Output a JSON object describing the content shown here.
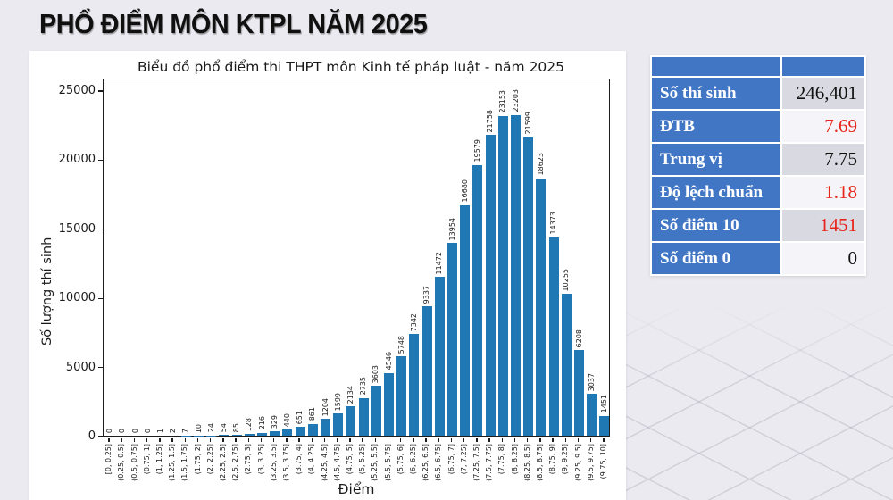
{
  "page_title": "PHỔ ĐIỂM MÔN KTPL NĂM 2025",
  "colors": {
    "bar": "#1f77b4",
    "table_blue": "#4176c5",
    "red": "#e8251a",
    "black": "#111111",
    "value_bg_odd": "#d9d9e1",
    "value_bg_even": "#f5f4f8",
    "background": "#ebeaf0"
  },
  "chart_data": {
    "type": "bar",
    "title": "Biểu đồ phổ điểm thi THPT môn Kinh tế pháp luật - năm 2025",
    "xlabel": "Điểm",
    "ylabel": "Số lượng thí sinh",
    "ylim": [
      0,
      25000
    ],
    "yticks": [
      0,
      5000,
      10000,
      15000,
      20000,
      25000
    ],
    "grid": false,
    "legend_position": "none",
    "bar_color": "#1f77b4",
    "categories": [
      "[0, 0.25]",
      "(0.25, 0.5]",
      "(0.5, 0.75]",
      "(0.75, 1]",
      "(1, 1.25]",
      "(1.25, 1.5]",
      "(1.5, 1.75]",
      "(1.75, 2]",
      "(2, 2.25]",
      "(2.25, 2.5]",
      "(2.5, 2.75]",
      "(2.75, 3]",
      "(3, 3.25]",
      "(3.25, 3.5]",
      "(3.5, 3.75]",
      "(3.75, 4]",
      "(4, 4.25]",
      "(4.25, 4.5]",
      "(4.5, 4.75]",
      "(4.75, 5]",
      "(5, 5.25]",
      "(5.25, 5.5]",
      "(5.5, 5.75]",
      "(5.75, 6]",
      "(6, 6.25]",
      "(6.25, 6.5]",
      "(6.5, 6.75]",
      "(6.75, 7]",
      "(7, 7.25]",
      "(7.25, 7.5]",
      "(7.5, 7.75]",
      "(7.75, 8]",
      "(8, 8.25]",
      "(8.25, 8.5]",
      "(8.5, 8.75]",
      "(8.75, 9]",
      "(9, 9.25]",
      "(9.25, 9.5]",
      "(9.5, 9.75]",
      "(9.75, 10]"
    ],
    "values": [
      0,
      0,
      0,
      0,
      1,
      2,
      7,
      10,
      24,
      54,
      85,
      128,
      216,
      329,
      440,
      651,
      861,
      1204,
      1599,
      2134,
      2735,
      3603,
      4546,
      5748,
      7342,
      9337,
      11472,
      13954,
      16680,
      19579,
      21758,
      23153,
      23203,
      21599,
      18623,
      14373,
      10255,
      6208,
      3037,
      1451
    ]
  },
  "stats_table": {
    "rows": [
      {
        "label": "Số thí sinh",
        "value": "246,401",
        "value_color": "black"
      },
      {
        "label": "ĐTB",
        "value": "7.69",
        "value_color": "red"
      },
      {
        "label": "Trung vị",
        "value": "7.75",
        "value_color": "black"
      },
      {
        "label": "Độ lệch chuẩn",
        "value": "1.18",
        "value_color": "red"
      },
      {
        "label": "Số điểm 10",
        "value": "1451",
        "value_color": "red"
      },
      {
        "label": "Số điểm 0",
        "value": "0",
        "value_color": "black"
      }
    ]
  }
}
